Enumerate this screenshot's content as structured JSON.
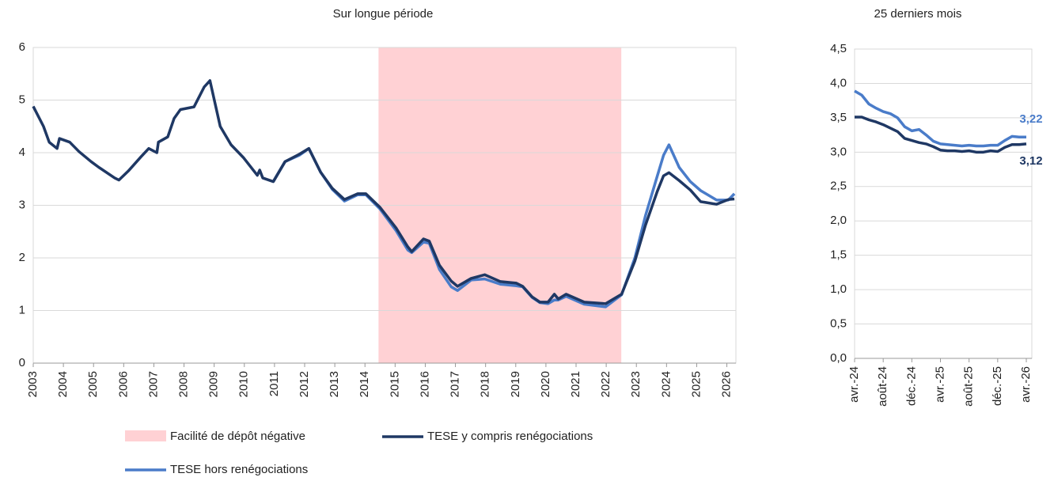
{
  "chart_data": [
    {
      "type": "line",
      "title": "Sur longue période",
      "x": [
        2003.0,
        2003.34,
        2003.53,
        2003.79,
        2003.87,
        2004.21,
        2004.52,
        2004.92,
        2005.18,
        2005.7,
        2005.84,
        2006.15,
        2006.57,
        2006.83,
        2007.1,
        2007.15,
        2007.46,
        2007.67,
        2007.88,
        2008.33,
        2008.67,
        2008.86,
        2009.2,
        2009.56,
        2009.98,
        2010.43,
        2010.51,
        2010.61,
        2010.96,
        2011.35,
        2011.82,
        2012.14,
        2012.53,
        2012.92,
        2013.32,
        2013.76,
        2014.03,
        2014.5,
        2015.03,
        2015.42,
        2015.55,
        2015.94,
        2016.13,
        2016.47,
        2016.86,
        2017.07,
        2017.52,
        2017.97,
        2018.49,
        2019.02,
        2019.23,
        2019.54,
        2019.8,
        2020.07,
        2020.28,
        2020.41,
        2020.67,
        2021.27,
        2021.98,
        2022.51,
        2022.95,
        2023.3,
        2023.69,
        2023.9,
        2024.08,
        2024.42,
        2024.79,
        2025.13,
        2025.66,
        2026.05,
        2026.25
      ],
      "series": [
        {
          "name": "TESE y compris renégociations",
          "color": "#1f3864",
          "values": [
            4.88,
            4.5,
            4.2,
            4.08,
            4.27,
            4.2,
            4.02,
            3.83,
            3.72,
            3.52,
            3.48,
            3.65,
            3.92,
            4.08,
            4.0,
            4.2,
            4.3,
            4.65,
            4.82,
            4.87,
            5.25,
            5.37,
            4.5,
            4.15,
            3.9,
            3.57,
            3.67,
            3.52,
            3.45,
            3.83,
            3.97,
            4.08,
            3.63,
            3.32,
            3.11,
            3.22,
            3.22,
            2.96,
            2.57,
            2.21,
            2.12,
            2.36,
            2.32,
            1.86,
            1.56,
            1.46,
            1.61,
            1.68,
            1.55,
            1.52,
            1.46,
            1.26,
            1.16,
            1.16,
            1.31,
            1.22,
            1.31,
            1.16,
            1.13,
            1.31,
            1.94,
            2.62,
            3.26,
            3.56,
            3.62,
            3.47,
            3.29,
            3.07,
            3.02,
            3.11,
            3.12
          ]
        },
        {
          "name": "TESE hors renégociations",
          "color": "#4a7cc9",
          "values": [
            null,
            null,
            null,
            null,
            null,
            null,
            null,
            null,
            null,
            null,
            null,
            null,
            null,
            null,
            null,
            null,
            null,
            null,
            null,
            null,
            null,
            null,
            null,
            null,
            null,
            null,
            null,
            null,
            3.45,
            3.83,
            3.95,
            4.08,
            3.63,
            3.3,
            3.08,
            3.2,
            3.2,
            2.93,
            2.52,
            2.15,
            2.1,
            2.3,
            2.28,
            1.78,
            1.45,
            1.38,
            1.58,
            1.6,
            1.5,
            1.47,
            1.45,
            1.25,
            1.15,
            1.13,
            1.2,
            1.2,
            1.27,
            1.12,
            1.07,
            1.3,
            2.0,
            2.8,
            3.55,
            3.95,
            4.15,
            3.72,
            3.45,
            3.28,
            3.1,
            3.1,
            3.22
          ]
        }
      ],
      "shaded_regions": [
        {
          "name": "Facilité de dépôt négative",
          "x": [
            2014.45,
            2022.5
          ],
          "color": "#ffd1d4"
        }
      ],
      "xlim": [
        2003,
        2026.3
      ],
      "xticks": [
        2003,
        2004,
        2005,
        2006,
        2007,
        2008,
        2009,
        2010,
        2011,
        2012,
        2013,
        2014,
        2015,
        2016,
        2017,
        2018,
        2019,
        2020,
        2021,
        2022,
        2023,
        2024,
        2025,
        2026
      ],
      "ylim": [
        0,
        6
      ],
      "yticks": [
        0,
        1,
        2,
        3,
        4,
        5,
        6
      ],
      "grid": true
    },
    {
      "type": "line",
      "title": "25 derniers mois",
      "categories": [
        "avr.-24",
        null,
        null,
        null,
        "août-24",
        null,
        null,
        null,
        "déc.-24",
        null,
        null,
        null,
        "avr.-25",
        null,
        null,
        null,
        "août-25",
        null,
        null,
        null,
        "déc.-25",
        null,
        null,
        null,
        "avr.-26"
      ],
      "series": [
        {
          "name": "TESE hors renégociations",
          "color": "#4a7cc9",
          "values": [
            3.89,
            3.83,
            3.7,
            3.64,
            3.59,
            3.56,
            3.5,
            3.37,
            3.31,
            3.33,
            3.25,
            3.16,
            3.12,
            3.11,
            3.1,
            3.09,
            3.1,
            3.09,
            3.09,
            3.1,
            3.1,
            3.17,
            3.23,
            3.22,
            3.22
          ],
          "value_labels": [
            null,
            null,
            null,
            null,
            null,
            null,
            null,
            null,
            null,
            null,
            null,
            null,
            null,
            null,
            null,
            null,
            null,
            null,
            null,
            null,
            null,
            null,
            null,
            null,
            "3,22"
          ]
        },
        {
          "name": "TESE y compris renégociations",
          "color": "#1f3864",
          "values": [
            3.51,
            3.51,
            3.47,
            3.44,
            3.4,
            3.35,
            3.3,
            3.2,
            3.17,
            3.14,
            3.12,
            3.08,
            3.03,
            3.02,
            3.02,
            3.01,
            3.02,
            3.0,
            3.0,
            3.02,
            3.01,
            3.07,
            3.11,
            3.11,
            3.12
          ],
          "value_labels": [
            null,
            null,
            null,
            null,
            null,
            null,
            null,
            null,
            null,
            null,
            null,
            null,
            null,
            null,
            null,
            null,
            null,
            null,
            null,
            null,
            null,
            null,
            null,
            null,
            "3,12"
          ]
        }
      ],
      "ylim": [
        0,
        4.5
      ],
      "yticks": [
        {
          "value": 0,
          "label": "0,0"
        },
        {
          "value": 0.5,
          "label": "0,5"
        },
        {
          "value": 1,
          "label": "1,0"
        },
        {
          "value": 1.5,
          "label": "1,5"
        },
        {
          "value": 2,
          "label": "2,0"
        },
        {
          "value": 2.5,
          "label": "2,5"
        },
        {
          "value": 3,
          "label": "3,0"
        },
        {
          "value": 3.5,
          "label": "3,5"
        },
        {
          "value": 4,
          "label": "4,0"
        },
        {
          "value": 4.5,
          "label": "4,5"
        }
      ],
      "grid": true
    }
  ]
}
